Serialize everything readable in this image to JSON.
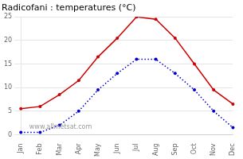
{
  "chart_data": {
    "type": "line",
    "title": "Radicofani : temperatures (°C)",
    "categories": [
      "Jan",
      "Feb",
      "Mar",
      "Apr",
      "May",
      "Jun",
      "Jul",
      "Aug",
      "Sep",
      "Oct",
      "Nov",
      "Dec"
    ],
    "series": [
      {
        "color": "#cc0000",
        "line_style": "solid",
        "marker": "circle",
        "values": [
          5.5,
          6.0,
          8.5,
          11.5,
          16.5,
          20.5,
          25.0,
          24.5,
          20.5,
          15.0,
          9.5,
          6.5
        ]
      },
      {
        "color": "#0000cc",
        "line_style": "dotted",
        "marker": "circle",
        "values": [
          0.5,
          0.5,
          2.0,
          5.0,
          9.5,
          13.0,
          16.0,
          16.0,
          13.0,
          9.5,
          5.0,
          1.5
        ]
      }
    ],
    "ylim": [
      0,
      25
    ],
    "yticks": [
      0,
      5,
      10,
      15,
      20,
      25
    ],
    "grid": true,
    "annotations": [
      "www.allmetsat.com"
    ]
  }
}
